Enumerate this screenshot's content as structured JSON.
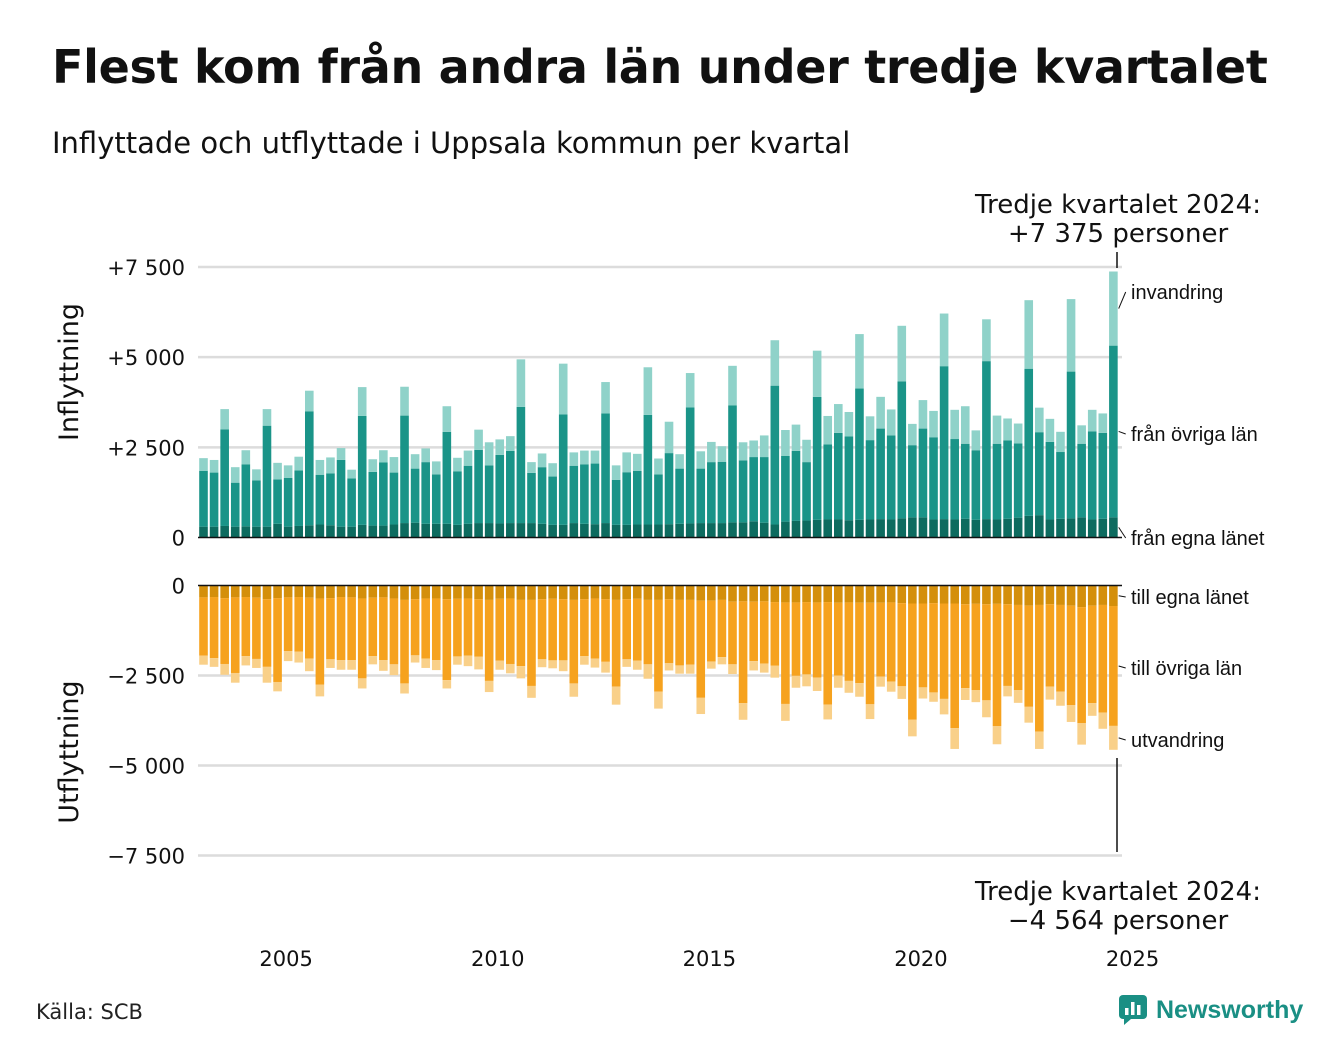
{
  "title": "Flest kom från andra län under tredje kvartalet",
  "subtitle": "Inflyttade och utflyttade i Uppsala kommun per kvartal",
  "source": "Källa: SCB",
  "logo": {
    "text": "Newsworthy",
    "icon": "chart-bubble-icon",
    "color": "#1a8f84"
  },
  "chart_data": {
    "type": "bar",
    "stacked": true,
    "start": "2003 Q1",
    "end": "2024 Q3",
    "x_ticks": [
      "2005",
      "2010",
      "2015",
      "2020",
      "2025"
    ],
    "grid": true,
    "panels": [
      {
        "ylabel": "Inflyttning",
        "ylim": [
          0,
          7500
        ],
        "y_ticks": [
          "0",
          "+2 500",
          "+5 000",
          "+7 500"
        ],
        "series": [
          {
            "name": "från egna länet",
            "color": "#0d6b5f",
            "values": [
              300,
              300,
              320,
              300,
              310,
              300,
              300,
              380,
              300,
              320,
              340,
              360,
              340,
              300,
              300,
              350,
              330,
              330,
              360,
              400,
              410,
              380,
              380,
              380,
              350,
              380,
              400,
              400,
              390,
              400,
              400,
              400,
              380,
              350,
              350,
              400,
              380,
              370,
              400,
              350,
              350,
              360,
              360,
              360,
              370,
              380,
              390,
              400,
              400,
              400,
              420,
              420,
              450,
              410,
              360,
              440,
              460,
              470,
              490,
              500,
              500,
              480,
              490,
              500,
              510,
              500,
              530,
              560,
              560,
              500,
              510,
              500,
              520,
              490,
              510,
              500,
              520,
              550,
              600,
              620,
              500,
              520,
              530,
              560,
              500,
              520,
              560
            ]
          },
          {
            "name": "från övriga län",
            "color": "#1a9488",
            "values": [
              1550,
              1500,
              2680,
              1220,
              1720,
              1280,
              2800,
              1230,
              1350,
              1540,
              3160,
              1380,
              1440,
              1850,
              1340,
              3020,
              1490,
              1750,
              1440,
              2980,
              1500,
              1710,
              1370,
              2550,
              1480,
              1610,
              2030,
              1600,
              1900,
              2000,
              3220,
              1390,
              1570,
              1340,
              3060,
              1590,
              1650,
              1680,
              3040,
              1250,
              1460,
              1490,
              3040,
              1390,
              1970,
              1530,
              3220,
              1510,
              1690,
              1700,
              3240,
              1720,
              1780,
              1820,
              3850,
              1820,
              1940,
              1620,
              3410,
              2080,
              2400,
              2320,
              3640,
              2200,
              2510,
              2330,
              3800,
              2000,
              2460,
              2280,
              4240,
              2230,
              2080,
              1930,
              4380,
              2100,
              2170,
              2060,
              4080,
              2300,
              2150,
              1850,
              4070,
              2040,
              2440,
              2380,
              4760
            ]
          },
          {
            "name": "invandring",
            "color": "#8fd2c9",
            "values": [
              350,
              350,
              560,
              430,
              390,
              310,
              460,
              460,
              350,
              380,
              570,
              410,
              440,
              330,
              240,
              800,
              350,
              340,
              430,
              800,
              400,
              380,
              360,
              710,
              380,
              420,
              560,
              640,
              430,
              410,
              1320,
              300,
              380,
              370,
              1410,
              370,
              380,
              360,
              870,
              400,
              550,
              470,
              1320,
              440,
              870,
              400,
              950,
              480,
              560,
              430,
              1100,
              500,
              460,
              600,
              1260,
              720,
              730,
              620,
              1280,
              790,
              800,
              680,
              1510,
              660,
              880,
              720,
              1540,
              590,
              790,
              730,
              1460,
              810,
              1040,
              550,
              1160,
              780,
              610,
              550,
              1900,
              680,
              640,
              560,
              2010,
              510,
              600,
              540,
              2055
            ]
          }
        ]
      },
      {
        "ylabel": "Utflyttning",
        "ylim": [
          -7500,
          0
        ],
        "y_ticks": [
          "0",
          "−2 500",
          "−5 000",
          "−7 500"
        ],
        "series": [
          {
            "name": "till egna länet",
            "color": "#d48f0b",
            "values": [
              -330,
              -320,
              -350,
              -330,
              -320,
              -340,
              -380,
              -350,
              -330,
              -320,
              -340,
              -360,
              -350,
              -320,
              -330,
              -360,
              -340,
              -330,
              -360,
              -400,
              -380,
              -360,
              -360,
              -380,
              -370,
              -360,
              -380,
              -400,
              -370,
              -360,
              -400,
              -400,
              -380,
              -370,
              -380,
              -400,
              -380,
              -360,
              -380,
              -400,
              -380,
              -370,
              -400,
              -400,
              -380,
              -400,
              -400,
              -420,
              -420,
              -400,
              -450,
              -440,
              -450,
              -440,
              -460,
              -470,
              -470,
              -460,
              -470,
              -460,
              -480,
              -470,
              -480,
              -480,
              -480,
              -470,
              -490,
              -500,
              -500,
              -490,
              -500,
              -500,
              -520,
              -510,
              -520,
              -510,
              -520,
              -540,
              -560,
              -540,
              -520,
              -540,
              -560,
              -600,
              -560,
              -540,
              -570
            ]
          },
          {
            "name": "till övriga län",
            "color": "#f6a21e",
            "values": [
              -1620,
              -1700,
              -1830,
              -2100,
              -1640,
              -1700,
              -1880,
              -2330,
              -1490,
              -1520,
              -1690,
              -2390,
              -1700,
              -1750,
              -1740,
              -2220,
              -1620,
              -1740,
              -1830,
              -2320,
              -1560,
              -1670,
              -1710,
              -2250,
              -1600,
              -1590,
              -1600,
              -2250,
              -1720,
              -1820,
              -1840,
              -2390,
              -1670,
              -1710,
              -1700,
              -2320,
              -1580,
              -1670,
              -1740,
              -2410,
              -1670,
              -1720,
              -1790,
              -2550,
              -1780,
              -1820,
              -1800,
              -2700,
              -1690,
              -1590,
              -1740,
              -2830,
              -1650,
              -1730,
              -1770,
              -2820,
              -2040,
              -2010,
              -2090,
              -2850,
              -2020,
              -2180,
              -2230,
              -2820,
              -2050,
              -2200,
              -2310,
              -3230,
              -2330,
              -2480,
              -2650,
              -3460,
              -2330,
              -2400,
              -2670,
              -3400,
              -2270,
              -2370,
              -2810,
              -3520,
              -2290,
              -2410,
              -2760,
              -3220,
              -2710,
              -2990,
              -3330
            ]
          },
          {
            "name": "utvandring",
            "color": "#f9d089",
            "values": [
              -250,
              -240,
              -300,
              -270,
              -260,
              -250,
              -440,
              -260,
              -280,
              -300,
              -350,
              -330,
              -240,
              -270,
              -270,
              -280,
              -230,
              -300,
              -300,
              -280,
              -200,
              -260,
              -280,
              -230,
              -230,
              -290,
              -350,
              -310,
              -250,
              -260,
              -340,
              -330,
              -220,
              -220,
              -300,
              -370,
              -240,
              -250,
              -300,
              -500,
              -210,
              -250,
              -400,
              -470,
              -200,
              -230,
              -250,
              -450,
              -200,
              -200,
              -270,
              -460,
              -260,
              -250,
              -330,
              -470,
              -330,
              -330,
              -370,
              -410,
              -340,
              -330,
              -380,
              -410,
              -280,
              -280,
              -350,
              -460,
              -310,
              -260,
              -430,
              -580,
              -330,
              -330,
              -470,
              -500,
              -290,
              -350,
              -440,
              -480,
              -360,
              -390,
              -470,
              -600,
              -350,
              -450,
              -664
            ]
          }
        ]
      }
    ],
    "legend": {
      "top": [
        "invandring",
        "från övriga län",
        "från egna länet"
      ],
      "bottom": [
        "till egna länet",
        "till övriga län",
        "utvandring"
      ]
    },
    "annotations": [
      {
        "lines": [
          "Tredje kvartalet 2024:",
          "+7 375 personer"
        ]
      },
      {
        "lines": [
          "Tredje kvartalet 2024:",
          "−4 564 personer"
        ]
      }
    ]
  }
}
